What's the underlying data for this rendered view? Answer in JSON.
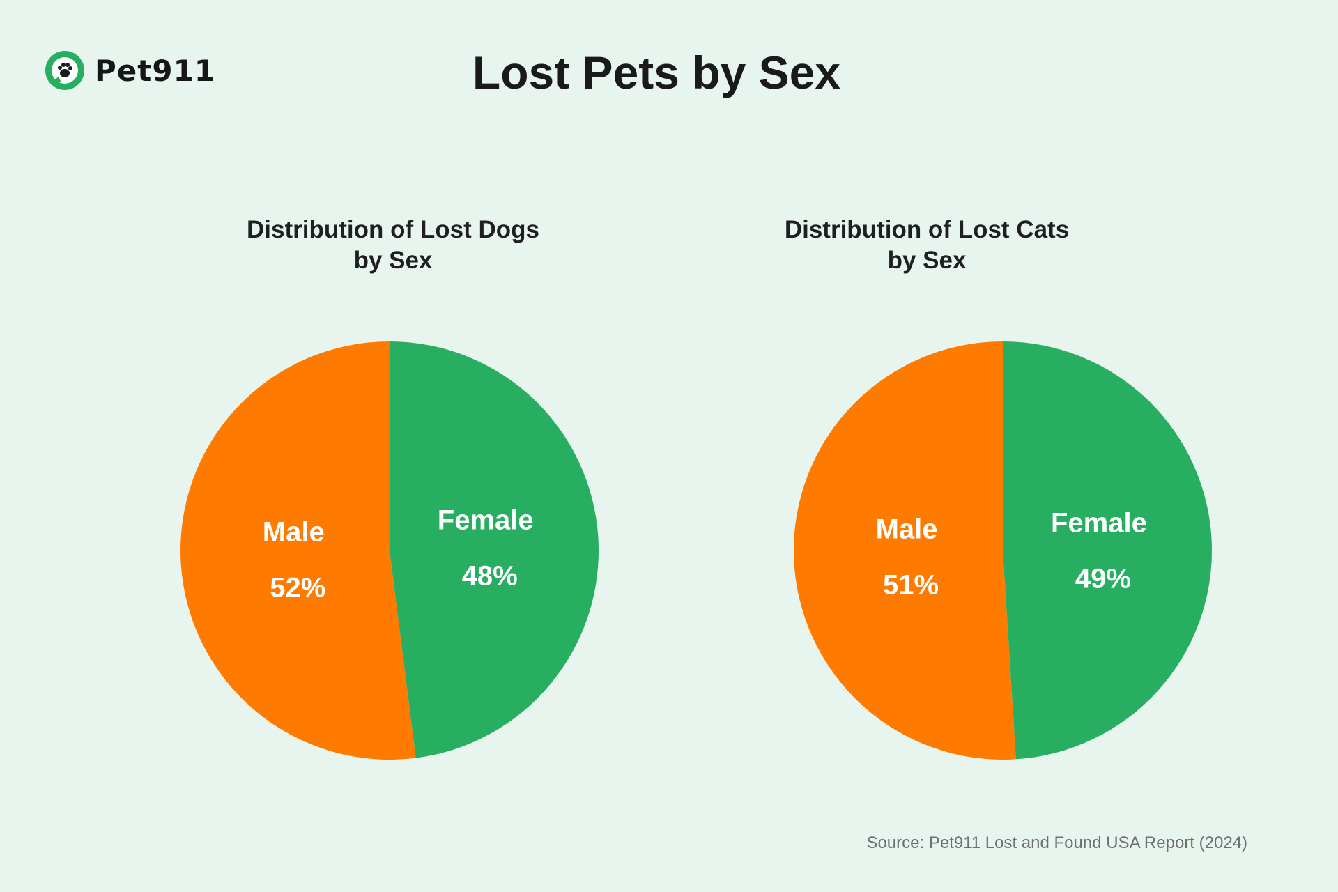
{
  "brand": {
    "name": "Pet911"
  },
  "title": "Lost Pets by Sex",
  "source": "Source: Pet911 Lost and Found USA Report (2024)",
  "colors": {
    "background": "#e7f5ee",
    "male": "#ff7b00",
    "female": "#27ae60",
    "label": "#ffffff"
  },
  "chart_data": [
    {
      "type": "pie",
      "title": "Distribution of Lost Dogs\nby Sex",
      "slices": [
        {
          "label": "Female",
          "value": 48,
          "display": "48%",
          "color": "#27ae60"
        },
        {
          "label": "Male",
          "value": 52,
          "display": "52%",
          "color": "#ff7b00"
        }
      ]
    },
    {
      "type": "pie",
      "title": "Distribution of Lost Cats\nby Sex",
      "slices": [
        {
          "label": "Female",
          "value": 49,
          "display": "49%",
          "color": "#27ae60"
        },
        {
          "label": "Male",
          "value": 51,
          "display": "51%",
          "color": "#ff7b00"
        }
      ]
    }
  ]
}
